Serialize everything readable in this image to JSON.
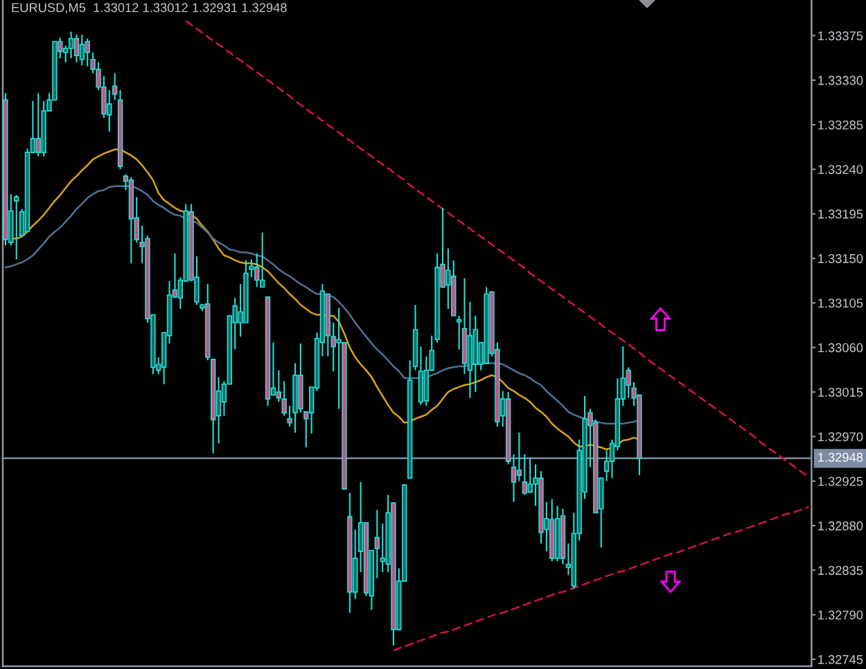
{
  "chart_data": {
    "type": "candlestick",
    "title": "EURUSD,M5  1.33012 1.33012 1.32931 1.32948",
    "categories": [
      null,
      null,
      null,
      null,
      null,
      null,
      null,
      null,
      null,
      null,
      null,
      null,
      null,
      null,
      null,
      null,
      null,
      null,
      null,
      null,
      null,
      null,
      null,
      null,
      null,
      null,
      null,
      null,
      null,
      null,
      null,
      null,
      null,
      null,
      null,
      null,
      null,
      null,
      null,
      null,
      null,
      null,
      null,
      null,
      null,
      null,
      null,
      null,
      null,
      null,
      null,
      null,
      null,
      null,
      null,
      null,
      null,
      null,
      null,
      null,
      null,
      null,
      null,
      null,
      null,
      null,
      null,
      null,
      null,
      null,
      null,
      null,
      null,
      null,
      null,
      null,
      null,
      null,
      null,
      null,
      null,
      null,
      null,
      null,
      null,
      null,
      null,
      null,
      null,
      null,
      null,
      null,
      null,
      null,
      null,
      null,
      null,
      null,
      null,
      null,
      null,
      null,
      null,
      null,
      null,
      null,
      null,
      null,
      null,
      null,
      null,
      null,
      null,
      null,
      null,
      null,
      null,
      null,
      null,
      null,
      null,
      null,
      null,
      null,
      null,
      null,
      null,
      null,
      null,
      null,
      null,
      null,
      null,
      null,
      null,
      null,
      null,
      null,
      null,
      null,
      null,
      null,
      null,
      null,
      null,
      null,
      null,
      null
    ],
    "color": "#1fe3da",
    "ohlc": [
      [
        1.3331,
        1.33317,
        1.33163,
        1.33169
      ],
      [
        1.33166,
        1.33215,
        1.33163,
        1.33198
      ],
      [
        1.33208,
        1.33214,
        1.33149,
        1.33212
      ],
      [
        1.33173,
        1.332,
        1.33172,
        1.33197
      ],
      [
        1.33177,
        1.33261,
        1.33176,
        1.33257
      ],
      [
        1.33257,
        1.33309,
        1.33256,
        1.33271
      ],
      [
        1.33271,
        1.33317,
        1.33253,
        1.33257
      ],
      [
        1.33257,
        1.33309,
        1.33253,
        1.33299
      ],
      [
        1.33299,
        1.33317,
        1.33299,
        1.3331
      ],
      [
        1.3331,
        1.33369,
        1.3331,
        1.33369
      ],
      [
        1.33369,
        1.33373,
        1.33352,
        1.33359
      ],
      [
        1.33358,
        1.33365,
        1.33348,
        1.33362
      ],
      [
        1.33362,
        1.33379,
        1.33352,
        1.33372
      ],
      [
        1.33372,
        1.33376,
        1.33348,
        1.33355
      ],
      [
        1.33351,
        1.33376,
        1.33345,
        1.33366
      ],
      [
        1.33369,
        1.33372,
        1.33344,
        1.33358
      ],
      [
        1.33351,
        1.33358,
        1.33337,
        1.33341
      ],
      [
        1.33341,
        1.33348,
        1.3332,
        1.33323
      ],
      [
        1.33323,
        1.33334,
        1.33292,
        1.33296
      ],
      [
        1.33295,
        1.3332,
        1.33278,
        1.33306
      ],
      [
        1.33324,
        1.33337,
        1.3331,
        1.33316
      ],
      [
        1.3331,
        1.3332,
        1.3324,
        1.33243
      ],
      [
        1.33233,
        1.33235,
        1.33219,
        1.33228
      ],
      [
        1.33229,
        1.33232,
        1.33145,
        1.3319
      ],
      [
        1.33191,
        1.33212,
        1.33166,
        1.33169
      ],
      [
        1.33166,
        1.33183,
        1.33145,
        1.33162
      ],
      [
        1.3317,
        1.33173,
        1.33085,
        1.33089
      ],
      [
        1.3304,
        1.33093,
        1.33033,
        1.33093
      ],
      [
        1.33037,
        1.3305,
        1.33033,
        1.33043
      ],
      [
        1.3304,
        1.33075,
        1.33023,
        1.33075
      ],
      [
        1.33072,
        1.33127,
        1.33064,
        1.33113
      ],
      [
        1.33118,
        1.33155,
        1.3311,
        1.33111
      ],
      [
        1.3311,
        1.33131,
        1.33099,
        1.33128
      ],
      [
        1.33127,
        1.33205,
        1.33127,
        1.33198
      ],
      [
        1.33197,
        1.33205,
        1.33127,
        1.33128
      ],
      [
        1.33106,
        1.33152,
        1.33103,
        1.33131
      ],
      [
        1.331,
        1.33104,
        1.33097,
        1.33103
      ],
      [
        1.33104,
        1.33124,
        1.33047,
        1.3305
      ],
      [
        1.33048,
        1.33048,
        1.32953,
        1.32987
      ],
      [
        1.32991,
        1.3303,
        1.32963,
        1.33016
      ],
      [
        1.33005,
        1.33026,
        1.32991,
        1.33023
      ],
      [
        1.33023,
        1.33093,
        1.33023,
        1.33092
      ],
      [
        1.33085,
        1.3311,
        1.33058,
        1.33102
      ],
      [
        1.33085,
        1.33124,
        1.33071,
        1.33096
      ],
      [
        1.33085,
        1.33148,
        1.33085,
        1.33135
      ],
      [
        1.33139,
        1.33149,
        1.33131,
        1.33142
      ],
      [
        1.33141,
        1.33155,
        1.33121,
        1.33128
      ],
      [
        1.33121,
        1.33176,
        1.33121,
        1.33128
      ],
      [
        1.33111,
        1.33111,
        1.33001,
        1.33008
      ],
      [
        1.33012,
        1.33065,
        1.33012,
        1.33019
      ],
      [
        1.33015,
        1.33037,
        1.33005,
        1.33009
      ],
      [
        1.33008,
        1.33026,
        1.32991,
        1.32994
      ],
      [
        1.32988,
        1.33001,
        1.3298,
        1.32984
      ],
      [
        1.32994,
        1.33044,
        1.32974,
        1.33032
      ],
      [
        1.33032,
        1.33064,
        1.32994,
        1.32998
      ],
      [
        1.32995,
        1.32995,
        1.32959,
        1.32988
      ],
      [
        1.32994,
        1.3302,
        1.32973,
        1.3302
      ],
      [
        1.33019,
        1.33075,
        1.33016,
        1.33069
      ],
      [
        1.33065,
        1.33124,
        1.33051,
        1.33117
      ],
      [
        1.33114,
        1.33114,
        1.33051,
        1.33072
      ],
      [
        1.33071,
        1.33085,
        1.33036,
        1.33061
      ],
      [
        1.33065,
        1.331,
        1.32998,
        1.33068
      ],
      [
        1.33065,
        1.33065,
        1.32917,
        1.32917
      ],
      [
        1.32889,
        1.32913,
        1.32792,
        1.32813
      ],
      [
        1.32813,
        1.32876,
        1.32806,
        1.32847
      ],
      [
        1.32854,
        1.32924,
        1.32833,
        1.32883
      ],
      [
        1.32883,
        1.32883,
        1.32809,
        1.32812
      ],
      [
        1.32809,
        1.32855,
        1.32795,
        1.32855
      ],
      [
        1.32868,
        1.32896,
        1.32827,
        1.32857
      ],
      [
        1.32844,
        1.32882,
        1.32833,
        1.32847
      ],
      [
        1.32841,
        1.32911,
        1.32833,
        1.32893
      ],
      [
        1.32903,
        1.32903,
        1.32759,
        1.32775
      ],
      [
        1.32775,
        1.32837,
        1.32774,
        1.32824
      ],
      [
        1.32824,
        1.32922,
        1.32824,
        1.32921
      ],
      [
        1.32928,
        1.33047,
        1.32928,
        1.33027
      ],
      [
        1.33041,
        1.33103,
        1.33037,
        1.33078
      ],
      [
        1.33005,
        1.33061,
        1.33002,
        1.33036
      ],
      [
        1.33006,
        1.33051,
        1.33001,
        1.33037
      ],
      [
        1.33037,
        1.33072,
        1.33036,
        1.33057
      ],
      [
        1.33068,
        1.33155,
        1.33065,
        1.33141
      ],
      [
        1.33144,
        1.33201,
        1.3312,
        1.33121
      ],
      [
        1.33123,
        1.3316,
        1.33099,
        1.33138
      ],
      [
        1.33132,
        1.33148,
        1.33092,
        1.33092
      ],
      [
        1.33086,
        1.33092,
        1.33058,
        1.33088
      ],
      [
        1.33079,
        1.3313,
        1.33033,
        1.33044
      ],
      [
        1.33037,
        1.33106,
        1.33009,
        1.33072
      ],
      [
        1.33043,
        1.33092,
        1.33015,
        1.33078
      ],
      [
        1.33043,
        1.33065,
        1.33037,
        1.33065
      ],
      [
        1.33044,
        1.33121,
        1.33044,
        1.33114
      ],
      [
        1.33116,
        1.33117,
        1.33051,
        1.33054
      ],
      [
        1.33058,
        1.33065,
        1.3298,
        1.32985
      ],
      [
        1.32991,
        1.33016,
        1.3298,
        1.33008
      ],
      [
        1.33008,
        1.33015,
        1.32942,
        1.32945
      ],
      [
        1.32939,
        1.32952,
        1.32904,
        1.32924
      ],
      [
        1.32936,
        1.32974,
        1.32925,
        1.32931
      ],
      [
        1.32924,
        1.32952,
        1.32911,
        1.32913
      ],
      [
        1.32914,
        1.32949,
        1.32913,
        1.32922
      ],
      [
        1.32922,
        1.32942,
        1.329,
        1.32928
      ],
      [
        1.32928,
        1.32935,
        1.32862,
        1.32873
      ],
      [
        1.32876,
        1.32904,
        1.32854,
        1.32887
      ],
      [
        1.32886,
        1.32907,
        1.32844,
        1.32847
      ],
      [
        1.32847,
        1.329,
        1.32844,
        1.32887
      ],
      [
        1.3289,
        1.32897,
        1.32841,
        1.32847
      ],
      [
        1.32838,
        1.32862,
        1.3283,
        1.32841
      ],
      [
        1.32819,
        1.32893,
        1.32816,
        1.32872
      ],
      [
        1.32872,
        1.32967,
        1.32865,
        1.32956
      ],
      [
        1.32914,
        1.33011,
        1.32907,
        1.32988
      ],
      [
        1.32994,
        1.32998,
        1.32939,
        1.32981
      ],
      [
        1.32984,
        1.32987,
        1.32893,
        1.32893
      ],
      [
        1.32897,
        1.32928,
        1.32858,
        1.32928
      ],
      [
        1.32935,
        1.32956,
        1.32925,
        1.32945
      ],
      [
        1.32945,
        1.32967,
        1.32928,
        1.32963
      ],
      [
        1.3296,
        1.33029,
        1.32956,
        1.33008
      ],
      [
        1.33008,
        1.33061,
        1.33001,
        1.33029
      ],
      [
        1.33037,
        1.3304,
        1.33009,
        1.33022
      ],
      [
        1.33019,
        1.33025,
        1.33001,
        1.33009
      ],
      [
        1.33012,
        1.33012,
        1.32931,
        1.32948
      ],
      null,
      null,
      null,
      null,
      null,
      null,
      null,
      null,
      null,
      null,
      null,
      null,
      null,
      null,
      null,
      null,
      null,
      null,
      null,
      null,
      null,
      null,
      null,
      null,
      null,
      null,
      null,
      null,
      null,
      null,
      null
    ],
    "colors": [
      "#e0457e",
      "#176e67",
      "#176e67",
      "#176e67",
      "#176e67",
      "#176e67",
      "#e0457e",
      "#176e67",
      "#176e67",
      "#176e67",
      "#e0457e",
      "#176e67",
      "#176e67",
      "#e0457e",
      "#176e67",
      "#e0457e",
      "#e0457e",
      "#e0457e",
      "#e0457e",
      "#176e67",
      "#e0457e",
      "#e0457e",
      "#e0457e",
      "#e0457e",
      "#e0457e",
      "#e0457e",
      "#e0457e",
      "#176e67",
      "#176e67",
      "#176e67",
      "#176e67",
      "#e0457e",
      "#176e67",
      "#176e67",
      "#e0457e",
      "#176e67",
      "#176e67",
      "#e0457e",
      "#e0457e",
      "#176e67",
      "#176e67",
      "#176e67",
      "#176e67",
      "#176e67",
      "#176e67",
      "#176e67",
      "#e0457e",
      "#176e67",
      "#e0457e",
      "#176e67",
      "#e0457e",
      "#e0457e",
      "#e0457e",
      "#176e67",
      "#e0457e",
      "#e0457e",
      "#176e67",
      "#176e67",
      "#176e67",
      "#e0457e",
      "#e0457e",
      "#176e67",
      "#e0457e",
      "#e0457e",
      "#176e67",
      "#176e67",
      "#e0457e",
      "#176e67",
      "#e0457e",
      "#176e67",
      "#176e67",
      "#e0457e",
      "#176e67",
      "#176e67",
      "#176e67",
      "#176e67",
      "#176e67",
      "#176e67",
      "#176e67",
      "#176e67",
      "#e0457e",
      "#176e67",
      "#e0457e",
      "#176e67",
      "#e0457e",
      "#176e67",
      "#176e67",
      "#176e67",
      "#176e67",
      "#e0457e",
      "#e0457e",
      "#176e67",
      "#e0457e",
      "#e0457e",
      "#e0457e",
      "#e0457e",
      "#176e67",
      "#176e67",
      "#e0457e",
      "#176e67",
      "#e0457e",
      "#176e67",
      "#e0457e",
      "#176e67",
      "#176e67",
      "#176e67",
      "#176e67",
      "#e0457e",
      "#e0457e",
      "#176e67",
      "#176e67",
      "#176e67",
      "#176e67",
      "#176e67",
      "#e0457e",
      "#e0457e",
      "#e0457e",
      null,
      null,
      null,
      null,
      null,
      null,
      null,
      null,
      null,
      null,
      null,
      null,
      null,
      null,
      null,
      null,
      null,
      null,
      null,
      null,
      null,
      null,
      null,
      null,
      null,
      null,
      null,
      null,
      null,
      null,
      null
    ],
    "series": [
      {
        "type": "line",
        "color": "#dba214",
        "values": [
          null,
          1.3317,
          1.3317,
          1.33172,
          1.33177,
          1.33183,
          1.33188,
          1.33194,
          1.33201,
          1.33208,
          1.33214,
          1.33221,
          1.33228,
          1.33233,
          1.33239,
          1.33244,
          1.3325,
          1.33253,
          1.33256,
          1.33258,
          1.3326,
          1.3326,
          1.33257,
          1.33254,
          1.3325,
          1.33244,
          1.33237,
          1.33229,
          1.33216,
          1.33209,
          1.33205,
          1.33201,
          1.33198,
          1.33197,
          1.33194,
          1.3319,
          1.33183,
          1.33177,
          1.33169,
          1.3316,
          1.33153,
          1.33151,
          1.33148,
          1.33146,
          1.33145,
          1.33145,
          1.33144,
          1.33141,
          1.33137,
          1.33131,
          1.33125,
          1.3312,
          1.33114,
          1.33109,
          1.33103,
          1.33099,
          1.33095,
          1.33093,
          1.33093,
          1.33092,
          1.33092,
          1.33086,
          1.33074,
          1.3306,
          1.3305,
          1.33043,
          1.33037,
          1.3303,
          1.3302,
          1.33011,
          1.33002,
          1.32994,
          1.3299,
          1.32984,
          1.32985,
          1.32988,
          1.3299,
          1.32992,
          1.32997,
          1.33001,
          1.33008,
          1.33015,
          1.33018,
          1.3302,
          1.33022,
          1.33023,
          1.33025,
          1.33027,
          1.3303,
          1.33032,
          1.3303,
          1.33025,
          1.33019,
          1.33016,
          1.33012,
          1.33009,
          1.33005,
          1.32999,
          1.32995,
          1.3299,
          1.32983,
          1.32978,
          1.32974,
          1.3297,
          1.32964,
          1.3296,
          1.3296,
          1.32962,
          1.3296,
          1.32959,
          1.32957,
          1.32959,
          1.32962,
          1.32966,
          1.32967,
          1.32969,
          1.32967,
          null,
          null,
          null,
          null,
          null,
          null,
          null,
          null,
          null,
          null,
          null,
          null,
          null,
          null,
          null,
          null,
          null,
          null,
          null,
          null,
          null,
          null,
          null,
          null,
          null,
          null,
          null,
          null,
          null,
          null,
          null
        ]
      },
      {
        "type": "line",
        "color": "#4d7396",
        "values": [
          1.33141,
          1.33142,
          1.33144,
          1.33146,
          1.33149,
          1.33153,
          1.33159,
          1.33165,
          1.33172,
          1.33177,
          1.33181,
          1.33187,
          1.33193,
          1.332,
          1.33205,
          1.33211,
          1.33215,
          1.33218,
          1.33219,
          1.33222,
          1.33223,
          1.33223,
          1.33223,
          1.33223,
          1.33221,
          1.33218,
          1.33214,
          1.33208,
          1.33204,
          1.33201,
          1.33197,
          1.33194,
          1.33193,
          1.3319,
          1.33188,
          1.33186,
          1.33181,
          1.33176,
          1.3317,
          1.33166,
          1.33163,
          1.33159,
          1.33158,
          1.33156,
          1.33156,
          1.33155,
          1.33153,
          1.33152,
          1.33148,
          1.33144,
          1.33139,
          1.33135,
          1.33132,
          1.33128,
          1.33124,
          1.33121,
          1.33117,
          1.33114,
          1.33114,
          1.33113,
          1.33111,
          1.33106,
          1.331,
          1.33093,
          1.33085,
          1.33078,
          1.33071,
          1.33064,
          1.33058,
          1.33053,
          1.33047,
          1.33041,
          1.33036,
          1.33029,
          1.33029,
          1.33029,
          1.33029,
          1.3303,
          1.33032,
          1.33034,
          1.33037,
          1.33039,
          1.3304,
          1.33041,
          1.33041,
          1.33043,
          1.33043,
          1.33044,
          1.33044,
          1.33044,
          1.33044,
          1.33043,
          1.3304,
          1.33037,
          1.33034,
          1.33032,
          1.33029,
          1.33025,
          1.33022,
          1.33016,
          1.33011,
          1.33006,
          1.33001,
          1.32995,
          1.32992,
          1.3299,
          1.32988,
          1.32987,
          1.32985,
          1.32984,
          1.32983,
          1.32983,
          1.32983,
          1.32983,
          1.32984,
          1.32985,
          1.32987,
          null,
          null,
          null,
          null,
          null,
          null,
          null,
          null,
          null,
          null,
          null,
          null,
          null,
          null,
          null,
          null,
          null,
          null,
          null,
          null,
          null,
          null,
          null,
          null,
          null,
          null,
          null,
          null,
          null,
          null,
          null
        ]
      },
      {
        "type": "line",
        "color": "#d3153f",
        "line_style": "dashed",
        "values": [
          null,
          null,
          null,
          null,
          null,
          null,
          null,
          null,
          null,
          null,
          null,
          null,
          null,
          null,
          null,
          null,
          null,
          null,
          null,
          null,
          null,
          null,
          null,
          null,
          null,
          null,
          null,
          null,
          null,
          null,
          null,
          null,
          null,
          1.3339,
          1.33386,
          1.33382,
          1.33378,
          1.33374,
          1.3337,
          1.33366,
          1.33362,
          1.33358,
          1.33354,
          1.3335,
          1.33346,
          1.33342,
          1.33338,
          1.33334,
          1.3333,
          1.33326,
          1.33322,
          1.33318,
          1.33314,
          1.33309,
          1.33305,
          1.33301,
          1.33297,
          1.33293,
          1.33289,
          1.33285,
          1.33281,
          1.33277,
          1.33273,
          1.33269,
          1.33265,
          1.33261,
          1.33257,
          1.33253,
          1.33249,
          1.33245,
          1.33241,
          1.33237,
          1.33233,
          1.33229,
          1.33224,
          1.3322,
          1.33216,
          1.33212,
          1.33208,
          1.33204,
          1.332,
          1.33196,
          1.33192,
          1.33188,
          1.33184,
          1.3318,
          1.33176,
          1.33172,
          1.33168,
          1.33164,
          1.3316,
          1.33156,
          1.33152,
          1.33148,
          1.33144,
          1.3314,
          1.33135,
          1.33131,
          1.33127,
          1.33123,
          1.33119,
          1.33115,
          1.33111,
          1.33107,
          1.33103,
          1.33099,
          1.33095,
          1.33091,
          1.33087,
          1.33083,
          1.33079,
          1.33075,
          1.33071,
          1.33067,
          1.33063,
          1.33059,
          1.33055,
          1.3305,
          1.33046,
          1.33042,
          1.33038,
          1.33034,
          1.3303,
          1.33026,
          1.33022,
          1.33018,
          1.33014,
          1.3301,
          1.33006,
          1.33002,
          1.32998,
          1.32994,
          1.3299,
          1.32986,
          1.32982,
          1.32978,
          1.32974,
          1.3297,
          1.32965,
          1.32961,
          1.32957,
          1.32953,
          1.32949,
          1.32945,
          1.32941,
          1.32937,
          1.32933,
          1.32929
        ]
      },
      {
        "type": "line",
        "color": "#d3153f",
        "line_style": "dashed",
        "values": [
          null,
          null,
          null,
          null,
          null,
          null,
          null,
          null,
          null,
          null,
          null,
          null,
          null,
          null,
          null,
          null,
          null,
          null,
          null,
          null,
          null,
          null,
          null,
          null,
          null,
          null,
          null,
          null,
          null,
          null,
          null,
          null,
          null,
          null,
          null,
          null,
          null,
          null,
          null,
          null,
          null,
          null,
          null,
          null,
          null,
          null,
          null,
          null,
          null,
          null,
          null,
          null,
          null,
          null,
          null,
          null,
          null,
          null,
          null,
          null,
          null,
          null,
          null,
          null,
          null,
          null,
          null,
          null,
          null,
          null,
          null,
          1.32754,
          1.32756,
          1.32758,
          1.3276,
          1.32762,
          1.32764,
          1.32766,
          1.32768,
          1.3277,
          1.32772,
          1.32773,
          1.32775,
          1.32777,
          1.32779,
          1.32781,
          1.32783,
          1.32785,
          1.32787,
          1.32789,
          1.32791,
          1.32792,
          1.32794,
          1.32796,
          1.32798,
          1.328,
          1.32802,
          1.32804,
          1.32806,
          1.32808,
          1.3281,
          1.32812,
          1.32813,
          1.32815,
          1.32817,
          1.32819,
          1.32821,
          1.32823,
          1.32825,
          1.32827,
          1.32829,
          1.32831,
          1.32833,
          1.32834,
          1.32836,
          1.32838,
          1.3284,
          1.32842,
          1.32844,
          1.32846,
          1.32848,
          1.3285,
          1.32852,
          1.32853,
          1.32855,
          1.32857,
          1.32859,
          1.32861,
          1.32863,
          1.32865,
          1.32867,
          1.32869,
          1.32871,
          1.32873,
          1.32874,
          1.32876,
          1.32878,
          1.3288,
          1.32882,
          1.32884,
          1.32886,
          1.32888,
          1.3289,
          1.32892,
          1.32893,
          1.32895,
          1.32897,
          1.32899
        ]
      }
    ],
    "ylim": [
      1.32738,
      1.33411
    ],
    "yticks": [
      1.33375,
      {
        "value": 1.3333,
        "label": "1.33330"
      },
      1.33285,
      {
        "value": 1.3324,
        "label": "1.33240"
      },
      1.33195,
      {
        "value": 1.3315,
        "label": "1.33150"
      },
      1.33105,
      {
        "value": 1.3306,
        "label": "1.33060"
      },
      1.33015,
      {
        "value": 1.3297,
        "label": "1.32970"
      },
      1.32925,
      {
        "value": 1.3288,
        "label": "1.32880"
      },
      1.32835,
      {
        "value": 1.3279,
        "label": "1.32790"
      },
      1.32745
    ],
    "ref_lines": [
      {
        "axis": "y",
        "value": 1.32948,
        "label": "1.32948",
        "color": "#7d8ca3"
      }
    ],
    "tick_labels": "y"
  }
}
